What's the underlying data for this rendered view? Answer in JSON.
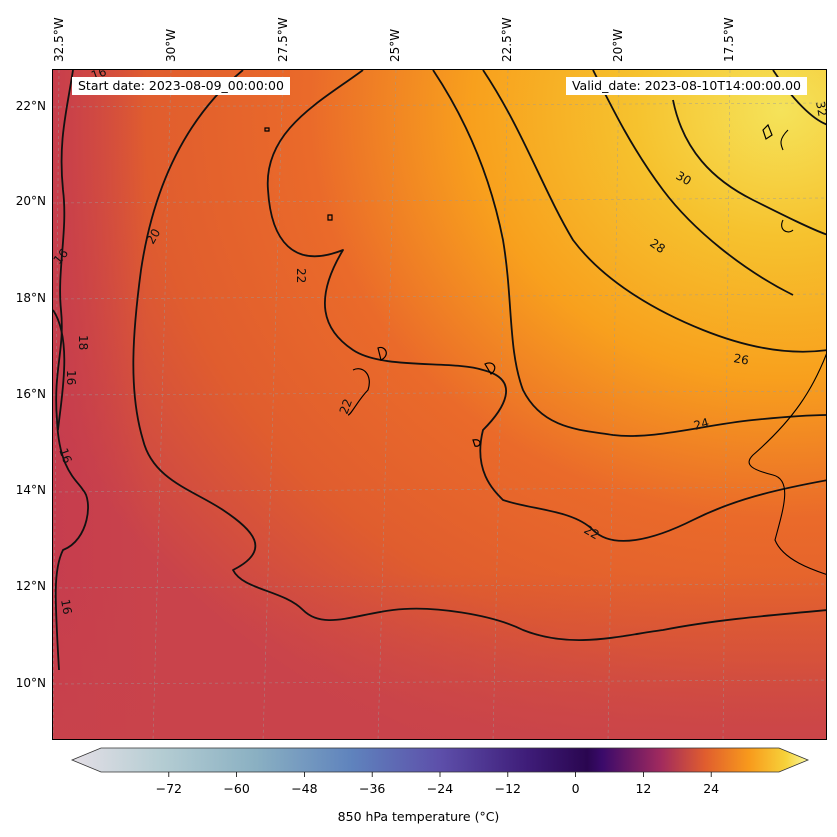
{
  "map": {
    "start_label": "Start date: 2023-08-09_00:00:00",
    "valid_label": "Valid_date: 2023-08-10T14:00:00.00",
    "lon_ticks": [
      "32.5°W",
      "30°W",
      "27.5°W",
      "25°W",
      "22.5°W",
      "20°W",
      "17.5°W"
    ],
    "lat_ticks": [
      "22°N",
      "20°N",
      "18°N",
      "16°N",
      "14°N",
      "12°N",
      "10°N"
    ],
    "contour_labels": [
      "16",
      "16",
      "16",
      "16",
      "16",
      "18",
      "20",
      "22",
      "22",
      "22",
      "24",
      "26",
      "28",
      "30",
      "32"
    ],
    "colors": {
      "land_edge": "#000000",
      "contour": "#111111",
      "warm_low": "#c9434b",
      "mid": "#e8632a",
      "orange": "#f89a1c",
      "yellow": "#f5e35a"
    }
  },
  "colorbar": {
    "ticks": [
      "−72",
      "−60",
      "−48",
      "−36",
      "−24",
      "−12",
      "0",
      "12",
      "24"
    ],
    "tick_values": [
      -72,
      -60,
      -48,
      -36,
      -24,
      -12,
      0,
      12,
      24
    ],
    "label": "850 hPa temperature ($^\\circ$C)",
    "label_display": "850 hPa temperature (°C)",
    "min": -84,
    "max": 36
  }
}
